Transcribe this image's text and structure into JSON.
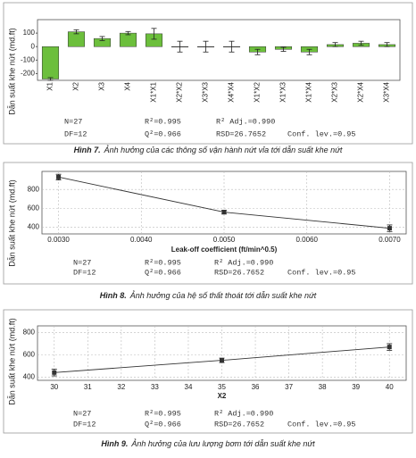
{
  "chart_data": [
    {
      "type": "bar",
      "caption_label": "Hình 7.",
      "caption": "Ảnh hưởng của các thông số vận hành nứt vỉa tới dẫn suất khe nứt",
      "y_label": "Dẫn suất khe nứt (md.ft)",
      "categories": [
        "X1",
        "X2",
        "X3",
        "X4",
        "X1*X1",
        "X2*X2",
        "X3*X3",
        "X4*X4",
        "X1*X2",
        "X1*X3",
        "X1*X4",
        "X2*X3",
        "X2*X4",
        "X3*X4"
      ],
      "values": [
        -240,
        110,
        60,
        100,
        95,
        0,
        0,
        0,
        -40,
        -20,
        -40,
        15,
        25,
        15
      ],
      "errors": [
        10,
        15,
        15,
        12,
        40,
        40,
        40,
        40,
        20,
        15,
        20,
        15,
        15,
        15
      ],
      "color": "#6cbf3c",
      "ylim": [
        -250,
        200
      ],
      "yticks": [
        -200,
        -100,
        0,
        100
      ],
      "annotations": [
        "N=27",
        "R²=0.995",
        "R² Adj.=0.990",
        "DF=12",
        "Q²=0.966",
        "RSD=26.7652",
        "Conf. lev.=0.95"
      ]
    },
    {
      "type": "line",
      "caption_label": "Hình 8.",
      "caption": "Ảnh hưởng của hệ số thất thoát tới dẫn suất khe nứt",
      "y_label": "Dẫn suất khe nứt (md.ft)",
      "x_label": "Leak-off coefficient (ft/min^0.5)",
      "x": [
        0.003,
        0.005,
        0.007
      ],
      "values": [
        930,
        560,
        390
      ],
      "errors": [
        30,
        20,
        35
      ],
      "color": "#333333",
      "xlim": [
        0.0028,
        0.0072
      ],
      "xticks": [
        {
          "value": 0.003,
          "label": "0.0030"
        },
        {
          "value": 0.004,
          "label": "0.0040"
        },
        {
          "value": 0.005,
          "label": "0.0050"
        },
        {
          "value": 0.006,
          "label": "0.0060"
        },
        {
          "value": 0.007,
          "label": "0.0070"
        }
      ],
      "ylim": [
        330,
        990
      ],
      "yticks": [
        400,
        600,
        800
      ],
      "grid": true,
      "annotations": [
        "N=27",
        "R²=0.995",
        "R² Adj.=0.990",
        "DF=12",
        "Q²=0.966",
        "RSD=26.7652",
        "Conf. lev.=0.95"
      ]
    },
    {
      "type": "line",
      "caption_label": "Hình 9.",
      "caption": "Ảnh hưởng của lưu lượng bơm tới dẫn suất khe nứt",
      "y_label": "Dẫn suất khe nứt (md.ft)",
      "x_label": "X2",
      "x": [
        30,
        35,
        40
      ],
      "values": [
        440,
        550,
        670
      ],
      "errors": [
        30,
        20,
        30
      ],
      "color": "#333333",
      "xlim": [
        29.5,
        40.5
      ],
      "xticks": [
        30,
        31,
        32,
        33,
        34,
        35,
        36,
        37,
        38,
        39,
        40
      ],
      "ylim": [
        370,
        860
      ],
      "yticks": [
        400,
        600,
        800
      ],
      "grid": true,
      "annotations": [
        "N=27",
        "R²=0.995",
        "R² Adj.=0.990",
        "DF=12",
        "Q²=0.966",
        "RSD=26.7652",
        "Conf. lev.=0.95"
      ]
    }
  ]
}
